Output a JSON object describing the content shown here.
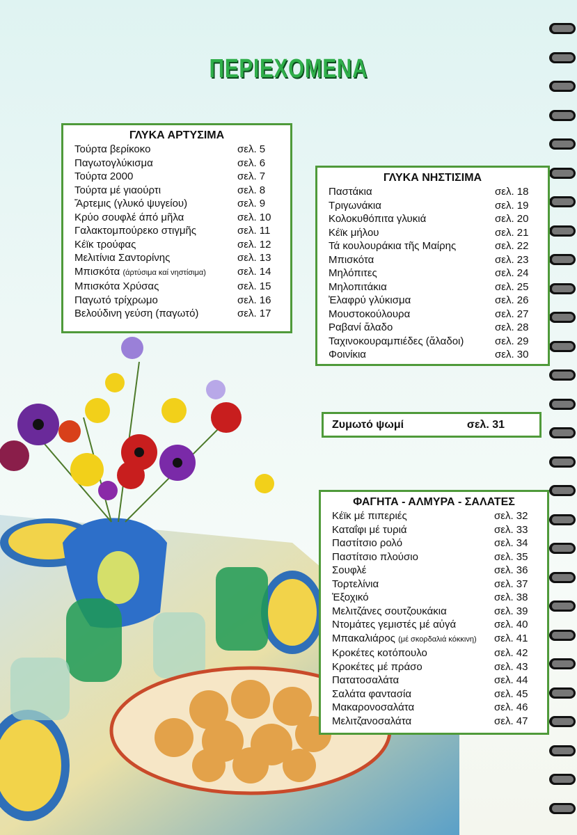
{
  "title": "ΠΕΡΙΕΧΟΜΕΝΑ",
  "sections": [
    {
      "heading": "ΓΛΥΚΑ ΑΡΤΥΣΙΜΑ",
      "items": [
        {
          "name": "Τούρτα βερίκοκο",
          "page": "σελ. 5"
        },
        {
          "name": "Παγωτογλύκισμα",
          "page": "σελ. 6"
        },
        {
          "name": "Τούρτα 2000",
          "page": "σελ. 7"
        },
        {
          "name": "Τούρτα μέ γιαούρτι",
          "page": "σελ. 8"
        },
        {
          "name": "Ἄρτεμις (γλυκό ψυγείου)",
          "page": "σελ. 9"
        },
        {
          "name": "Κρύο σουφλέ άπό μῆλα",
          "page": "σελ. 10"
        },
        {
          "name": "Γαλακτομπούρεκο στιγμῆς",
          "page": "σελ. 11"
        },
        {
          "name": "Κέϊκ τρούφας",
          "page": "σελ. 12"
        },
        {
          "name": "Μελιτίνια Σαντορίνης",
          "page": "σελ. 13"
        },
        {
          "name": "Μπισκότα",
          "note": "(άρτύσιμα καί νηστίσιμα)",
          "page": "σελ. 14"
        },
        {
          "name": "Μπισκότα Χρύσας",
          "page": "σελ. 15"
        },
        {
          "name": "Παγωτό τρίχρωμο",
          "page": "σελ. 16"
        },
        {
          "name": "Βελούδινη γεύση (παγωτό)",
          "page": "σελ. 17"
        }
      ]
    },
    {
      "heading": "ΓΛΥΚΑ ΝΗΣΤΙΣΙΜΑ",
      "items": [
        {
          "name": "Παστάκια",
          "page": "σελ. 18"
        },
        {
          "name": "Τριγωνάκια",
          "page": "σελ. 19"
        },
        {
          "name": "Κολοκυθόπιτα γλυκιά",
          "page": "σελ. 20"
        },
        {
          "name": "Κέϊκ μήλου",
          "page": "σελ. 21"
        },
        {
          "name": "Τά κουλουράκια τῆς Μαίρης",
          "page": "σελ. 22"
        },
        {
          "name": "Μπισκότα",
          "page": "σελ. 23"
        },
        {
          "name": "Μηλόπιτες",
          "page": "σελ. 24"
        },
        {
          "name": "Μηλοπιτάκια",
          "page": "σελ. 25"
        },
        {
          "name": "Ἐλαφρύ γλύκισμα",
          "page": "σελ. 26"
        },
        {
          "name": "Μουστοκούλουρα",
          "page": "σελ. 27"
        },
        {
          "name": "Ραβανί ἄλαδο",
          "page": "σελ. 28"
        },
        {
          "name": "Ταχινοκουραμπιέδες (ἄλαδοι)",
          "page": "σελ. 29"
        },
        {
          "name": "Φοινίκια",
          "page": "σελ. 30"
        }
      ]
    },
    {
      "heading": "ΦΑΓΗΤΑ - ΑΛΜΥΡΑ - ΣΑΛΑΤΕΣ",
      "items": [
        {
          "name": "Κέϊκ μέ πιπεριές",
          "page": "σελ. 32"
        },
        {
          "name": "Καταΐφι μέ τυριά",
          "page": "σελ. 33"
        },
        {
          "name": "Παστίτσιο ρολό",
          "page": "σελ. 34"
        },
        {
          "name": "Παστίτσιο πλούσιο",
          "page": "σελ. 35"
        },
        {
          "name": "Σουφλέ",
          "page": "σελ. 36"
        },
        {
          "name": "Τορτελίνια",
          "page": "σελ. 37"
        },
        {
          "name": "Ἐξοχικό",
          "page": "σελ. 38"
        },
        {
          "name": "Μελιτζάνες σουτζουκάκια",
          "page": "σελ. 39"
        },
        {
          "name": "Ντομάτες γεμιστές μέ αὐγά",
          "page": "σελ. 40"
        },
        {
          "name": "Μπακαλιάρος",
          "note": "(μέ σκορδαλιά κόκκινη)",
          "page": "σελ. 41"
        },
        {
          "name": "Κροκέτες κοτόπουλο",
          "page": "σελ. 42"
        },
        {
          "name": "Κροκέτες μέ πράσο",
          "page": "σελ. 43"
        },
        {
          "name": "Πατατοσαλάτα",
          "page": "σελ. 44"
        },
        {
          "name": "Σαλάτα φαντασία",
          "page": "σελ. 45"
        },
        {
          "name": "Μακαρονοσαλάτα",
          "page": "σελ. 46"
        },
        {
          "name": "Μελιτζανοσαλάτα",
          "page": "σελ. 47"
        }
      ]
    }
  ],
  "bread": {
    "name": "Ζυμωτό ψωμί",
    "page": "σελ. 31"
  },
  "colors": {
    "frame": "#4f9a3a",
    "title": "#2fae4a"
  }
}
